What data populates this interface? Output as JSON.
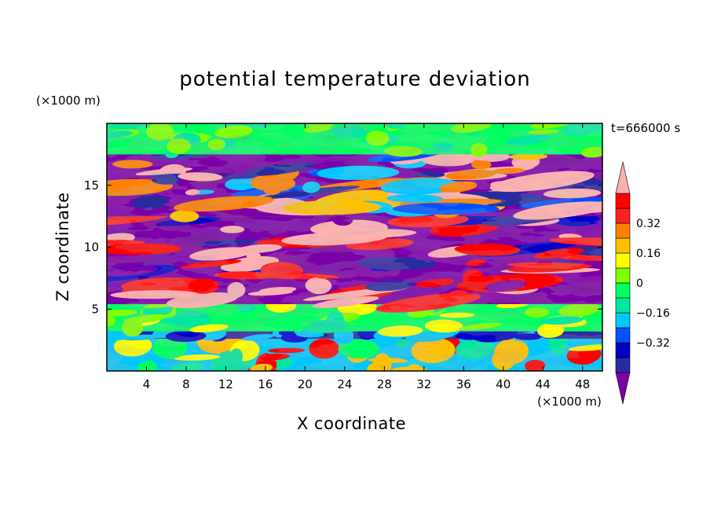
{
  "chart_data": {
    "type": "heatmap",
    "title": "potential temperature deviation",
    "xlabel": "X coordinate",
    "ylabel": "Z coordinate",
    "x_unit": "(×1000 m)",
    "y_unit": "(×1000 m)",
    "time_label": "t=666000 s",
    "xlim": [
      0,
      50
    ],
    "ylim": [
      0,
      20
    ],
    "x_ticks": [
      4,
      8,
      12,
      16,
      20,
      24,
      28,
      32,
      36,
      40,
      44,
      48
    ],
    "y_ticks": [
      5,
      10,
      15
    ],
    "colorbar": {
      "levels": [
        -0.48,
        -0.4,
        -0.32,
        -0.24,
        -0.16,
        -0.08,
        0,
        0.08,
        0.16,
        0.24,
        0.32,
        0.4,
        0.48
      ],
      "colors": [
        "#7b00a8",
        "#2a2aa0",
        "#0000c8",
        "#0050ff",
        "#00c8ff",
        "#00e8a0",
        "#00ff60",
        "#80ff00",
        "#ffff00",
        "#ffc000",
        "#ff8000",
        "#ff2020",
        "#ff0000",
        "#ffb0b0"
      ],
      "labels": [
        "0.32",
        "0.16",
        "0",
        "−0.16",
        "−0.32"
      ],
      "label_values": [
        0.32,
        0.16,
        0,
        -0.16,
        -0.32
      ]
    }
  }
}
